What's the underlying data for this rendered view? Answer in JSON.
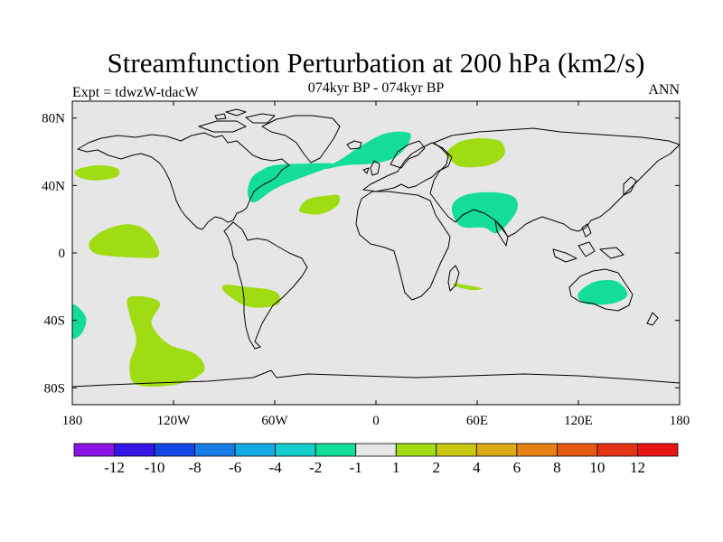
{
  "title": "Streamfunction Perturbation at 200 hPa (km2/s)",
  "left_label": "Expt = tdwzW-tdacW",
  "center_label": "074kyr BP - 074kyr BP",
  "right_label": "ANN",
  "map": {
    "projection": "cylindrical-equidistant",
    "lon_range": [
      -180,
      180
    ],
    "lat_range": [
      -90,
      90
    ],
    "background_color": "#e6e6e6",
    "coastline_color": "#000000",
    "lon_ticks": [
      {
        "value": -180,
        "label": "180"
      },
      {
        "value": -120,
        "label": "120W"
      },
      {
        "value": -60,
        "label": "60W"
      },
      {
        "value": 0,
        "label": "0"
      },
      {
        "value": 60,
        "label": "60E"
      },
      {
        "value": 120,
        "label": "120E"
      },
      {
        "value": 180,
        "label": "180"
      }
    ],
    "lat_ticks": [
      {
        "value": 80,
        "label": "80N"
      },
      {
        "value": 40,
        "label": "40N"
      },
      {
        "value": 0,
        "label": "0"
      },
      {
        "value": -40,
        "label": "40S"
      },
      {
        "value": -80,
        "label": "80S"
      }
    ],
    "anomaly_regions": [
      {
        "id": "n-pacific",
        "category": "1-2",
        "lonlat": [
          [
            -178,
            49
          ],
          [
            -165,
            52
          ],
          [
            -153,
            50
          ],
          [
            -154,
            45
          ],
          [
            -167,
            43
          ],
          [
            -176,
            45
          ]
        ]
      },
      {
        "id": "tropical-e-pacific",
        "category": "1-2",
        "lonlat": [
          [
            -170,
            6
          ],
          [
            -162,
            13
          ],
          [
            -148,
            17
          ],
          [
            -137,
            14
          ],
          [
            -130,
            5
          ],
          [
            -129,
            -2
          ],
          [
            -137,
            -3
          ],
          [
            -156,
            -2
          ],
          [
            -167,
            0
          ]
        ]
      },
      {
        "id": "n-atlantic-west",
        "category": "-2--1",
        "lonlat": [
          [
            -76,
            35
          ],
          [
            -74,
            44
          ],
          [
            -68,
            49
          ],
          [
            -60,
            52
          ],
          [
            -44,
            53
          ],
          [
            -26,
            53
          ],
          [
            -30,
            50
          ],
          [
            -46,
            44
          ],
          [
            -60,
            38
          ],
          [
            -72,
            30
          ]
        ]
      },
      {
        "id": "n-atlantic-ridge",
        "category": "-2--1",
        "lonlat": [
          [
            -30,
            50
          ],
          [
            -20,
            56
          ],
          [
            -8,
            64
          ],
          [
            6,
            71
          ],
          [
            20,
            71
          ],
          [
            18,
            63
          ],
          [
            10,
            56
          ],
          [
            -2,
            53
          ],
          [
            -18,
            52
          ]
        ]
      },
      {
        "id": "subtropical-n-atlantic",
        "category": "1-2",
        "lonlat": [
          [
            -45,
            27
          ],
          [
            -40,
            32
          ],
          [
            -29,
            34
          ],
          [
            -22,
            34
          ],
          [
            -23,
            28
          ],
          [
            -33,
            23
          ],
          [
            -44,
            24
          ]
        ]
      },
      {
        "id": "siberia",
        "category": "1-2",
        "lonlat": [
          [
            42,
            60
          ],
          [
            50,
            66
          ],
          [
            62,
            68
          ],
          [
            74,
            66
          ],
          [
            76,
            58
          ],
          [
            67,
            52
          ],
          [
            51,
            51
          ],
          [
            43,
            56
          ]
        ]
      },
      {
        "id": "south-asia",
        "category": "-2--1",
        "lonlat": [
          [
            45,
            27
          ],
          [
            52,
            34
          ],
          [
            68,
            36
          ],
          [
            82,
            33
          ],
          [
            83,
            24
          ],
          [
            72,
            12
          ],
          [
            64,
            15
          ],
          [
            50,
            16
          ]
        ]
      },
      {
        "id": "madagascar",
        "category": "1-2",
        "lonlat": [
          [
            46,
            -18
          ],
          [
            53,
            -19
          ],
          [
            63,
            -21
          ],
          [
            57,
            -22
          ],
          [
            48,
            -20
          ]
        ]
      },
      {
        "id": "australia",
        "category": "-2--1",
        "lonlat": [
          [
            120,
            -24
          ],
          [
            130,
            -17
          ],
          [
            143,
            -17
          ],
          [
            149,
            -25
          ],
          [
            140,
            -30
          ],
          [
            124,
            -30
          ]
        ]
      },
      {
        "id": "south-america",
        "category": "1-2",
        "lonlat": [
          [
            -90,
            -19
          ],
          [
            -78,
            -20
          ],
          [
            -62,
            -22
          ],
          [
            -57,
            -26
          ],
          [
            -59,
            -31
          ],
          [
            -75,
            -32
          ],
          [
            -89,
            -24
          ]
        ]
      },
      {
        "id": "s-pacific-west",
        "category": "-2--1",
        "lonlat": [
          [
            -180,
            -31
          ],
          [
            -172,
            -38
          ],
          [
            -174,
            -47
          ],
          [
            -180,
            -50
          ]
        ]
      },
      {
        "id": "s-pacific-south",
        "category": "1-2",
        "lonlat": [
          [
            -147,
            -27
          ],
          [
            -137,
            -26
          ],
          [
            -128,
            -30
          ],
          [
            -133,
            -42
          ],
          [
            -123,
            -54
          ],
          [
            -107,
            -60
          ],
          [
            -102,
            -70
          ],
          [
            -118,
            -78
          ],
          [
            -142,
            -78
          ],
          [
            -146,
            -66
          ],
          [
            -142,
            -52
          ],
          [
            -146,
            -37
          ]
        ]
      }
    ]
  },
  "colorbar": {
    "colors": [
      "#8c14e6",
      "#3214e6",
      "#1446e6",
      "#147ee6",
      "#14aae6",
      "#14cdcd",
      "#14dc9a",
      "#e6e6e6",
      "#a0dc14",
      "#c8c814",
      "#dcaa14",
      "#e68214",
      "#e65a14",
      "#e63214",
      "#e61414"
    ],
    "labels": [
      "-12",
      "-10",
      "-8",
      "-6",
      "-4",
      "-2",
      "-1",
      "1",
      "2",
      "4",
      "6",
      "8",
      "10",
      "12"
    ]
  }
}
